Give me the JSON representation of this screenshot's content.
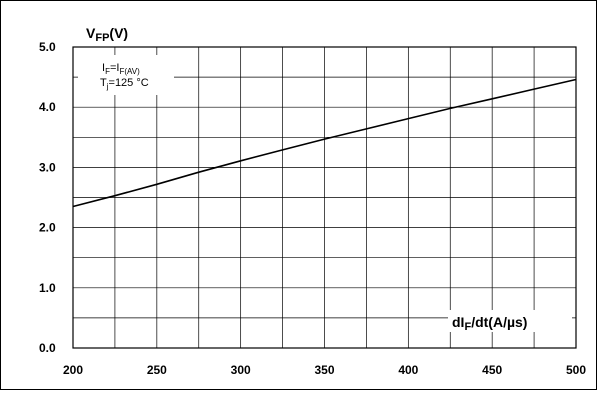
{
  "chart_data": {
    "type": "line",
    "title": "",
    "ylabel": {
      "main": "V",
      "sub": "FP",
      "unit": "(V)"
    },
    "xlabel": {
      "pre": "dI",
      "sub": "F",
      "post": "/dt(A/µs)"
    },
    "conditions": [
      {
        "base": "I",
        "sub": "F",
        "mid": "=I",
        "sub2": "F(AV)",
        "rest": ""
      },
      {
        "base": "T",
        "sub": "j",
        "mid": "=125 °C",
        "sub2": "",
        "rest": ""
      }
    ],
    "xlim": [
      200,
      500
    ],
    "ylim": [
      0.0,
      5.0
    ],
    "x_ticks": [
      "200",
      "250",
      "300",
      "350",
      "400",
      "450",
      "500"
    ],
    "y_ticks": [
      "0.0",
      "1.0",
      "2.0",
      "3.0",
      "4.0",
      "5.0"
    ],
    "grid": true,
    "series": [
      {
        "x": [
          200,
          225,
          250,
          275,
          300,
          325,
          350,
          375,
          400,
          425,
          450,
          475,
          500
        ],
        "y": [
          2.35,
          2.53,
          2.72,
          2.92,
          3.11,
          3.29,
          3.47,
          3.64,
          3.81,
          3.98,
          4.14,
          4.3,
          4.46
        ]
      }
    ]
  }
}
